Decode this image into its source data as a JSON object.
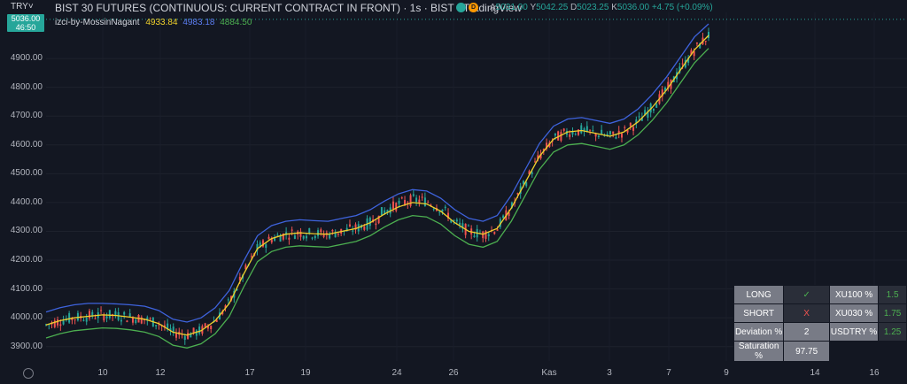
{
  "header": {
    "currency": "TRY˅",
    "title": "BIST 30 FUTURES (CONTINUOUS: CURRENT CONTRACT IN FRONT) · 1s · BIST · TradingView",
    "badges": [
      {
        "label": "",
        "color": "#26a69a",
        "icon": "live-dot-icon"
      },
      {
        "label": "D",
        "color": "#ff9800",
        "icon": "delay-badge-icon"
      }
    ],
    "ohlc": {
      "a_label": "A",
      "a": "5031.00",
      "y_label": "Y",
      "y": "5042.25",
      "d_label": "D",
      "d": "5023.25",
      "k_label": "K",
      "k": "5036.00",
      "change": "+4.75 (+0.09%)"
    },
    "indicator": {
      "name": "izci-by-MossinNagant",
      "v1": "4933.84",
      "v2": "4983.18",
      "v3": "4884.50"
    },
    "price_tag": {
      "price": "5036.00",
      "time": "46:50"
    }
  },
  "colors": {
    "background": "#131722",
    "up": "#26a69a",
    "down": "#ef5350",
    "mid_band": "#f0d02b",
    "upper_band": "#3e63dd",
    "lower_band": "#4caf50"
  },
  "y_axis": {
    "ticks": [
      "4900.00",
      "4800.00",
      "4700.00",
      "4600.00",
      "4500.00",
      "4400.00",
      "4300.00",
      "4200.00",
      "4100.00",
      "4000.00",
      "3900.00"
    ]
  },
  "x_axis": {
    "ticks": [
      "10",
      "12",
      "17",
      "19",
      "24",
      "26",
      "Kas",
      "3",
      "7",
      "9",
      "14",
      "16"
    ]
  },
  "chart_data": {
    "type": "line",
    "title": "",
    "xlabel": "",
    "ylabel": "",
    "ylim": [
      3850,
      5060
    ],
    "grid": true,
    "series": [
      {
        "values": [
          3975,
          3990,
          4000,
          4005,
          4010,
          4008,
          4002,
          3995,
          3980,
          3950,
          3940,
          3955,
          3990,
          4050,
          4150,
          4240,
          4275,
          4290,
          4295,
          4292,
          4290,
          4300,
          4310,
          4330,
          4360,
          4385,
          4400,
          4395,
          4370,
          4330,
          4300,
          4290,
          4310,
          4380,
          4470,
          4560,
          4620,
          4645,
          4650,
          4640,
          4630,
          4645,
          4680,
          4730,
          4790,
          4860,
          4930,
          4980
        ]
      },
      {
        "values": [
          4020,
          4035,
          4045,
          4050,
          4050,
          4048,
          4045,
          4040,
          4025,
          3995,
          3985,
          4000,
          4035,
          4095,
          4195,
          4285,
          4320,
          4335,
          4340,
          4337,
          4335,
          4345,
          4355,
          4375,
          4405,
          4430,
          4445,
          4440,
          4415,
          4375,
          4345,
          4335,
          4355,
          4425,
          4515,
          4605,
          4665,
          4690,
          4695,
          4685,
          4675,
          4690,
          4725,
          4775,
          4835,
          4905,
          4975,
          5020
        ]
      },
      {
        "values": [
          3930,
          3945,
          3955,
          3960,
          3965,
          3963,
          3958,
          3950,
          3935,
          3905,
          3895,
          3910,
          3945,
          4005,
          4105,
          4195,
          4230,
          4245,
          4250,
          4247,
          4245,
          4255,
          4265,
          4285,
          4315,
          4340,
          4355,
          4350,
          4325,
          4285,
          4255,
          4245,
          4265,
          4335,
          4425,
          4515,
          4575,
          4600,
          4605,
          4595,
          4585,
          4600,
          4635,
          4685,
          4745,
          4815,
          4885,
          4935
        ]
      }
    ]
  },
  "table": {
    "rows": [
      {
        "label": "LONG",
        "value": "✓",
        "label2": "XU100 %",
        "value2": "1.5"
      },
      {
        "label": "SHORT",
        "value": "X",
        "label2": "XU030 %",
        "value2": "1.75"
      },
      {
        "label": "Deviation %",
        "value": "2",
        "label2": "USDTRY %",
        "value2": "1.25"
      },
      {
        "label": "Saturation %",
        "value": "97.75",
        "label2": "",
        "value2": ""
      }
    ],
    "long_color": "#4caf50",
    "short_color": "#ef5350"
  }
}
